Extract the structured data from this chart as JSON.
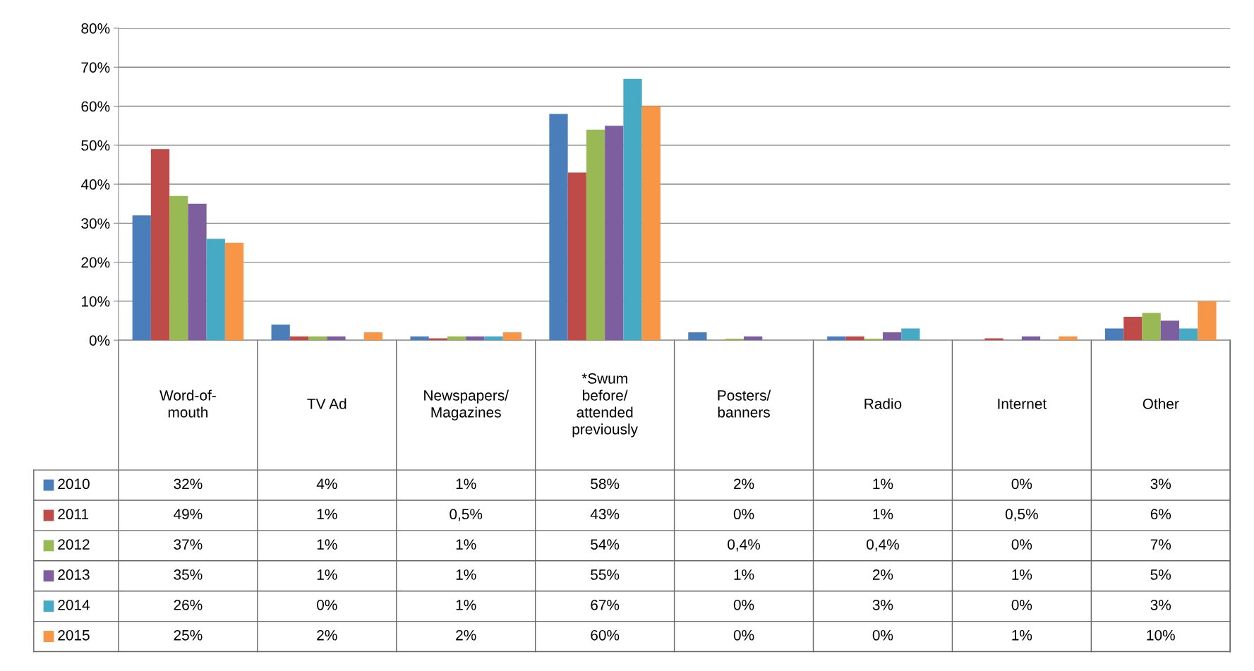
{
  "chart_data": {
    "type": "bar",
    "categories": [
      "Word-of-\nmouth",
      "TV Ad",
      "Newspapers/\nMagazines",
      "*Swum\nbefore/\nattended\npreviously",
      "Posters/\nbanners",
      "Radio",
      "Internet",
      "Other"
    ],
    "series": [
      {
        "name": "2010",
        "color": "#4a7ebb",
        "values": [
          32,
          4,
          1,
          58,
          2,
          1,
          0,
          3
        ],
        "value_labels": [
          "32%",
          "4%",
          "1%",
          "58%",
          "2%",
          "1%",
          "0%",
          "3%"
        ]
      },
      {
        "name": "2011",
        "color": "#be4b48",
        "values": [
          49,
          1,
          0.5,
          43,
          0,
          1,
          0.5,
          6
        ],
        "value_labels": [
          "49%",
          "1%",
          "0,5%",
          "43%",
          "0%",
          "1%",
          "0,5%",
          "6%"
        ]
      },
      {
        "name": "2012",
        "color": "#98b954",
        "values": [
          37,
          1,
          1,
          54,
          0.4,
          0.4,
          0,
          7
        ],
        "value_labels": [
          "37%",
          "1%",
          "1%",
          "54%",
          "0,4%",
          "0,4%",
          "0%",
          "7%"
        ]
      },
      {
        "name": "2013",
        "color": "#7d5fa0",
        "values": [
          35,
          1,
          1,
          55,
          1,
          2,
          1,
          5
        ],
        "value_labels": [
          "35%",
          "1%",
          "1%",
          "55%",
          "1%",
          "2%",
          "1%",
          "5%"
        ]
      },
      {
        "name": "2014",
        "color": "#46aac5",
        "values": [
          26,
          0,
          1,
          67,
          0,
          3,
          0,
          3
        ],
        "value_labels": [
          "26%",
          "0%",
          "1%",
          "67%",
          "0%",
          "3%",
          "0%",
          "3%"
        ]
      },
      {
        "name": "2015",
        "color": "#f79646",
        "values": [
          25,
          2,
          2,
          60,
          0,
          0,
          1,
          10
        ],
        "value_labels": [
          "25%",
          "2%",
          "2%",
          "60%",
          "0%",
          "0%",
          "1%",
          "10%"
        ]
      }
    ],
    "ylim": [
      0,
      80
    ],
    "yticks": [
      {
        "value": 0,
        "label": "0%"
      },
      {
        "value": 10,
        "label": "10%"
      },
      {
        "value": 20,
        "label": "20%"
      },
      {
        "value": 30,
        "label": "30%"
      },
      {
        "value": 40,
        "label": "40%"
      },
      {
        "value": 50,
        "label": "50%"
      },
      {
        "value": 60,
        "label": "60%"
      },
      {
        "value": 70,
        "label": "70%"
      },
      {
        "value": 80,
        "label": "80%"
      }
    ],
    "grid": "y",
    "legend": "bottom left"
  }
}
